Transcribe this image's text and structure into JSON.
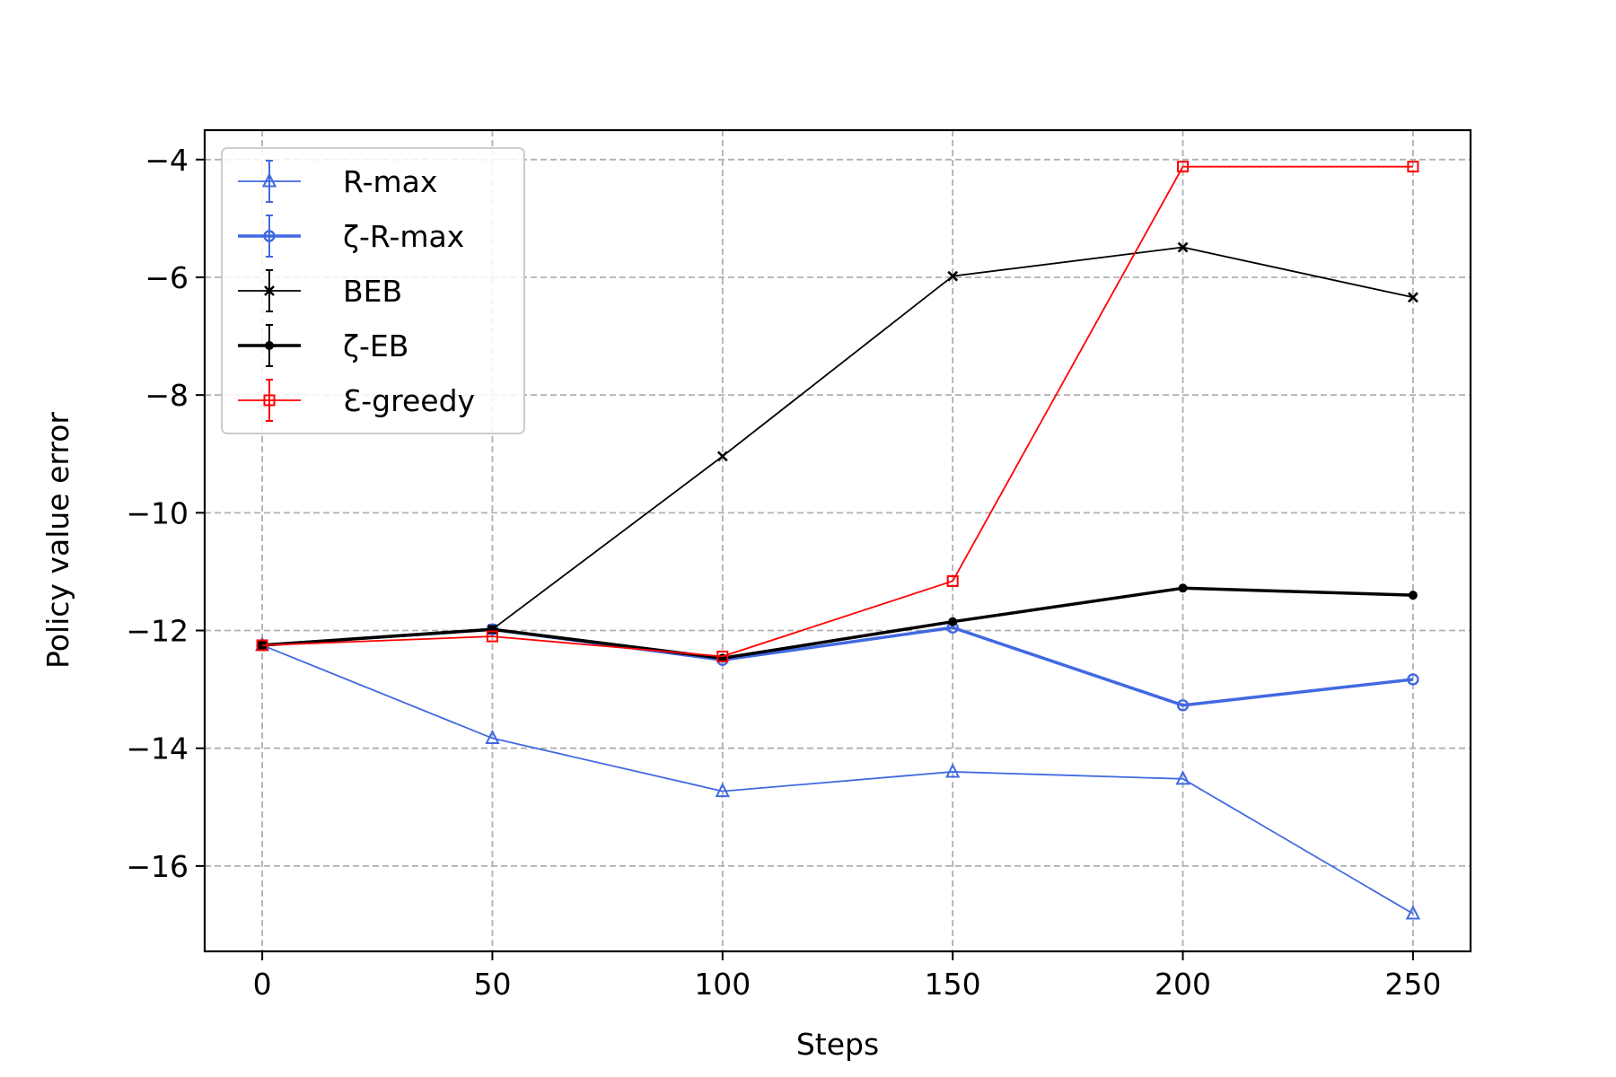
{
  "chart_data": {
    "type": "line",
    "xlabel": "Steps",
    "ylabel": "Policy value error",
    "xlim": [
      -12.5,
      262.5
    ],
    "ylim": [
      -17.45,
      -3.5
    ],
    "xticks": [
      0,
      50,
      100,
      150,
      200,
      250
    ],
    "yticks": [
      -16,
      -14,
      -12,
      -10,
      -8,
      -6,
      -4
    ],
    "xtick_labels": [
      "0",
      "50",
      "100",
      "150",
      "200",
      "250"
    ],
    "ytick_labels": [
      "−16",
      "−14",
      "−12",
      "−10",
      "−8",
      "−6",
      "−4"
    ],
    "grid": true,
    "legend_position": "upper-left",
    "x": [
      0,
      50,
      100,
      150,
      200,
      250
    ],
    "series": [
      {
        "name": "R-max",
        "values": [
          -12.25,
          -13.83,
          -14.73,
          -14.4,
          -14.52,
          -16.81
        ],
        "color": "#4169e1",
        "marker": "triangle",
        "line_width": "thin"
      },
      {
        "name": "ζ-R-max",
        "values": [
          -12.25,
          -11.98,
          -12.5,
          -11.95,
          -13.27,
          -12.83
        ],
        "color": "#4169e1",
        "marker": "circle",
        "line_width": "thick"
      },
      {
        "name": "BEB",
        "values": [
          -12.25,
          -11.98,
          -9.04,
          -5.98,
          -5.49,
          -6.34
        ],
        "color": "#000000",
        "marker": "x",
        "line_width": "thin"
      },
      {
        "name": "ζ-EB",
        "values": [
          -12.25,
          -11.98,
          -12.47,
          -11.85,
          -11.28,
          -11.4
        ],
        "color": "#000000",
        "marker": "dot",
        "line_width": "thick"
      },
      {
        "name": "Ɛ-greedy",
        "values": [
          -12.25,
          -12.1,
          -12.44,
          -11.16,
          -4.12,
          -4.12
        ],
        "color": "#ff0000",
        "marker": "square",
        "line_width": "thin"
      }
    ]
  }
}
